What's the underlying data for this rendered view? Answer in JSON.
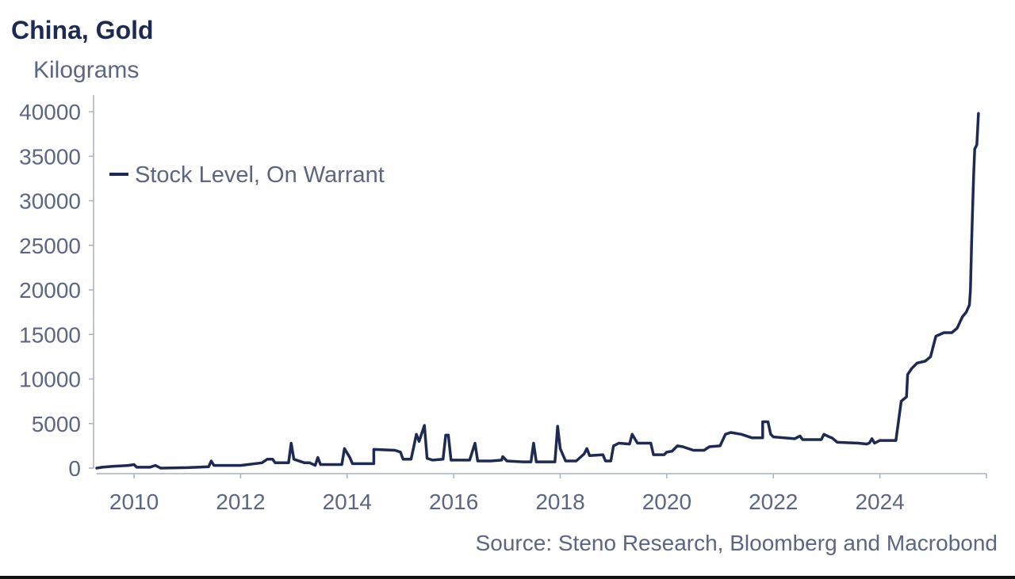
{
  "title": "China, Gold",
  "unit": "Kilograms",
  "source": "Source: Steno Research, Bloomberg and Macrobond",
  "colors": {
    "series": "#1e2a52",
    "text": "#5c6683",
    "axis": "#aab0c2"
  },
  "chart_data": {
    "type": "line",
    "title": "China, Gold",
    "ylabel": "Kilograms",
    "xlabel": "",
    "xlim": [
      2009.3,
      2026.0
    ],
    "ylim": [
      0,
      40000
    ],
    "grid": false,
    "legend_position": "top-left",
    "yticks": [
      "0",
      "5000",
      "10000",
      "15000",
      "20000",
      "25000",
      "30000",
      "35000",
      "40000"
    ],
    "xticks": [
      "2010",
      "2012",
      "2014",
      "2016",
      "2018",
      "2020",
      "2022",
      "2024"
    ],
    "series": [
      {
        "name": "Stock Level, On Warrant",
        "points": [
          [
            2009.3,
            0
          ],
          [
            2009.4,
            100
          ],
          [
            2009.6,
            200
          ],
          [
            2009.9,
            300
          ],
          [
            2010.0,
            400
          ],
          [
            2010.05,
            100
          ],
          [
            2010.3,
            100
          ],
          [
            2010.4,
            300
          ],
          [
            2010.5,
            0
          ],
          [
            2011.0,
            50
          ],
          [
            2011.4,
            150
          ],
          [
            2011.45,
            800
          ],
          [
            2011.5,
            300
          ],
          [
            2012.0,
            300
          ],
          [
            2012.4,
            600
          ],
          [
            2012.5,
            1000
          ],
          [
            2012.6,
            1000
          ],
          [
            2012.65,
            600
          ],
          [
            2012.9,
            600
          ],
          [
            2012.95,
            2800
          ],
          [
            2013.0,
            1000
          ],
          [
            2013.2,
            600
          ],
          [
            2013.3,
            600
          ],
          [
            2013.4,
            300
          ],
          [
            2013.45,
            1200
          ],
          [
            2013.5,
            400
          ],
          [
            2013.9,
            400
          ],
          [
            2013.95,
            2200
          ],
          [
            2014.05,
            1200
          ],
          [
            2014.1,
            500
          ],
          [
            2014.5,
            500
          ],
          [
            2014.5,
            2100
          ],
          [
            2014.9,
            2000
          ],
          [
            2015.0,
            1800
          ],
          [
            2015.05,
            1000
          ],
          [
            2015.2,
            1000
          ],
          [
            2015.25,
            2400
          ],
          [
            2015.3,
            3800
          ],
          [
            2015.35,
            3000
          ],
          [
            2015.45,
            4800
          ],
          [
            2015.5,
            1100
          ],
          [
            2015.6,
            900
          ],
          [
            2015.8,
            1000
          ],
          [
            2015.85,
            3700
          ],
          [
            2015.9,
            3700
          ],
          [
            2015.95,
            900
          ],
          [
            2016.3,
            900
          ],
          [
            2016.4,
            2800
          ],
          [
            2016.45,
            800
          ],
          [
            2016.7,
            800
          ],
          [
            2016.9,
            900
          ],
          [
            2016.92,
            1300
          ],
          [
            2017.0,
            800
          ],
          [
            2017.3,
            700
          ],
          [
            2017.45,
            700
          ],
          [
            2017.5,
            2800
          ],
          [
            2017.55,
            700
          ],
          [
            2017.9,
            700
          ],
          [
            2017.95,
            4700
          ],
          [
            2018.0,
            2200
          ],
          [
            2018.1,
            800
          ],
          [
            2018.3,
            800
          ],
          [
            2018.45,
            1600
          ],
          [
            2018.5,
            2200
          ],
          [
            2018.55,
            1400
          ],
          [
            2018.8,
            1500
          ],
          [
            2018.85,
            800
          ],
          [
            2018.95,
            800
          ],
          [
            2019.0,
            2500
          ],
          [
            2019.1,
            2800
          ],
          [
            2019.3,
            2700
          ],
          [
            2019.35,
            3800
          ],
          [
            2019.45,
            2800
          ],
          [
            2019.7,
            2800
          ],
          [
            2019.75,
            1500
          ],
          [
            2019.95,
            1500
          ],
          [
            2020.0,
            1800
          ],
          [
            2020.1,
            1900
          ],
          [
            2020.2,
            2500
          ],
          [
            2020.3,
            2400
          ],
          [
            2020.5,
            2000
          ],
          [
            2020.6,
            2000
          ],
          [
            2020.7,
            2000
          ],
          [
            2020.8,
            2400
          ],
          [
            2021.0,
            2500
          ],
          [
            2021.1,
            3800
          ],
          [
            2021.2,
            4000
          ],
          [
            2021.4,
            3800
          ],
          [
            2021.6,
            3400
          ],
          [
            2021.8,
            3400
          ],
          [
            2021.8,
            5200
          ],
          [
            2021.9,
            5200
          ],
          [
            2021.95,
            3800
          ],
          [
            2022.0,
            3500
          ],
          [
            2022.4,
            3300
          ],
          [
            2022.5,
            3600
          ],
          [
            2022.55,
            3200
          ],
          [
            2022.9,
            3200
          ],
          [
            2022.95,
            3800
          ],
          [
            2023.05,
            3500
          ],
          [
            2023.1,
            3400
          ],
          [
            2023.2,
            2900
          ],
          [
            2023.6,
            2800
          ],
          [
            2023.75,
            2700
          ],
          [
            2023.8,
            2800
          ],
          [
            2023.85,
            3300
          ],
          [
            2023.9,
            2800
          ],
          [
            2024.0,
            3100
          ],
          [
            2024.1,
            3100
          ],
          [
            2024.3,
            3100
          ],
          [
            2024.4,
            7500
          ],
          [
            2024.5,
            8000
          ],
          [
            2024.52,
            10500
          ],
          [
            2024.6,
            11200
          ],
          [
            2024.7,
            11800
          ],
          [
            2024.85,
            12000
          ],
          [
            2024.95,
            12500
          ],
          [
            2025.05,
            14800
          ],
          [
            2025.2,
            15200
          ],
          [
            2025.35,
            15200
          ],
          [
            2025.45,
            15700
          ],
          [
            2025.55,
            17000
          ],
          [
            2025.62,
            17500
          ],
          [
            2025.68,
            18300
          ],
          [
            2025.7,
            20000
          ],
          [
            2025.72,
            25000
          ],
          [
            2025.74,
            29000
          ],
          [
            2025.76,
            33000
          ],
          [
            2025.78,
            35800
          ],
          [
            2025.82,
            36300
          ],
          [
            2025.85,
            39800
          ]
        ]
      }
    ]
  }
}
